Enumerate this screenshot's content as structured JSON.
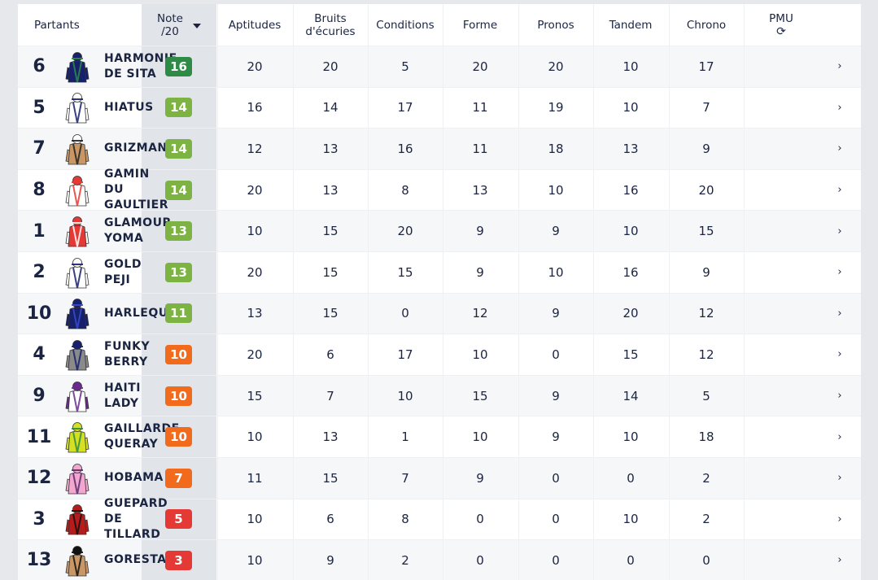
{
  "colors": {
    "high": "#2e8b45",
    "good": "#7cb342",
    "mid": "#f26b1d",
    "low": "#e53935"
  },
  "header": {
    "partants": "Partants",
    "note_line1": "Note",
    "note_line2": "/20",
    "sort_icon": "caret-down-icon",
    "cols": [
      {
        "l1": "Aptitudes",
        "l2": ""
      },
      {
        "l1": "Bruits",
        "l2": "d'écuries"
      },
      {
        "l1": "Conditions",
        "l2": ""
      },
      {
        "l1": "Forme",
        "l2": ""
      },
      {
        "l1": "Pronos",
        "l2": ""
      },
      {
        "l1": "Tandem",
        "l2": ""
      },
      {
        "l1": "Chrono",
        "l2": ""
      }
    ],
    "pmu": "PMU",
    "pmu_icon": "refresh-icon",
    "pmu_icon_glyph": "⟳"
  },
  "rows": [
    {
      "num": "6",
      "name": [
        "HARMONIE",
        "DE SITA"
      ],
      "note": "16",
      "level": "high",
      "silk": {
        "body": "#16206b",
        "arms": "#16206b",
        "cap": "#16206b",
        "accent": "#2e8b45"
      },
      "vals": [
        "20",
        "20",
        "5",
        "20",
        "20",
        "10",
        "17"
      ],
      "chev": "›"
    },
    {
      "num": "5",
      "name": [
        "HIATUS"
      ],
      "note": "14",
      "level": "good",
      "silk": {
        "body": "#ffffff",
        "arms": "#ffffff",
        "cap": "#ffffff",
        "accent": "#16206b"
      },
      "vals": [
        "16",
        "14",
        "17",
        "11",
        "19",
        "10",
        "7"
      ],
      "chev": "›"
    },
    {
      "num": "7",
      "name": [
        "GRIZMAN"
      ],
      "note": "14",
      "level": "good",
      "silk": {
        "body": "#c99766",
        "arms": "#c99766",
        "cap": "#ffffff",
        "accent": "#222222"
      },
      "vals": [
        "12",
        "13",
        "16",
        "11",
        "18",
        "13",
        "9"
      ],
      "chev": "›"
    },
    {
      "num": "8",
      "name": [
        "GAMIN",
        "DU",
        "GAULTIER"
      ],
      "note": "14",
      "level": "good",
      "silk": {
        "body": "#ffffff",
        "arms": "#ffffff",
        "cap": "#e53935",
        "accent": "#e53935"
      },
      "vals": [
        "20",
        "13",
        "8",
        "13",
        "10",
        "16",
        "20"
      ],
      "chev": "›"
    },
    {
      "num": "1",
      "name": [
        "GLAMOUR",
        "YOMA"
      ],
      "note": "13",
      "level": "good",
      "silk": {
        "body": "#e53935",
        "arms": "#ffffff",
        "cap": "#e53935",
        "accent": "#ffffff"
      },
      "vals": [
        "10",
        "15",
        "20",
        "9",
        "9",
        "10",
        "15"
      ],
      "chev": "›"
    },
    {
      "num": "2",
      "name": [
        "GOLD",
        "PEJI"
      ],
      "note": "13",
      "level": "good",
      "silk": {
        "body": "#ffffff",
        "arms": "#ffffff",
        "cap": "#ffffff",
        "accent": "#16206b"
      },
      "vals": [
        "20",
        "15",
        "15",
        "9",
        "10",
        "16",
        "9"
      ],
      "chev": "›"
    },
    {
      "num": "10",
      "name": [
        "HARLEQUIN"
      ],
      "note": "11",
      "level": "good",
      "silk": {
        "body": "#16206b",
        "arms": "#16206b",
        "cap": "#16206b",
        "accent": "#3a4bd0"
      },
      "vals": [
        "13",
        "15",
        "0",
        "12",
        "9",
        "20",
        "12"
      ],
      "chev": "›"
    },
    {
      "num": "4",
      "name": [
        "FUNKY",
        "BERRY"
      ],
      "note": "10",
      "level": "mid",
      "silk": {
        "body": "#8a8a8a",
        "arms": "#8a8a8a",
        "cap": "#16206b",
        "accent": "#16206b"
      },
      "vals": [
        "20",
        "6",
        "17",
        "10",
        "0",
        "15",
        "12"
      ],
      "chev": "›"
    },
    {
      "num": "9",
      "name": [
        "HAITI",
        "LADY"
      ],
      "note": "10",
      "level": "mid",
      "silk": {
        "body": "#ffffff",
        "arms": "#6a2a8c",
        "cap": "#6a2a8c",
        "accent": "#6a2a8c"
      },
      "vals": [
        "15",
        "7",
        "10",
        "15",
        "9",
        "14",
        "5"
      ],
      "chev": "›"
    },
    {
      "num": "11",
      "name": [
        "GAILLARDE",
        "QUERAY"
      ],
      "note": "10",
      "level": "mid",
      "silk": {
        "body": "#d4e021",
        "arms": "#d4e021",
        "cap": "#d4e021",
        "accent": "#2e8b45"
      },
      "vals": [
        "10",
        "13",
        "1",
        "10",
        "9",
        "10",
        "18"
      ],
      "chev": "›"
    },
    {
      "num": "12",
      "name": [
        "HOBAMA"
      ],
      "note": "7",
      "level": "mid",
      "silk": {
        "body": "#f2a7cf",
        "arms": "#f2a7cf",
        "cap": "#f2a7cf",
        "accent": "#5a2a6c"
      },
      "vals": [
        "11",
        "15",
        "7",
        "9",
        "0",
        "0",
        "2"
      ],
      "chev": "›"
    },
    {
      "num": "3",
      "name": [
        "GUEPARD",
        "DE",
        "TILLARD"
      ],
      "note": "5",
      "level": "low",
      "silk": {
        "body": "#b71c1c",
        "arms": "#b71c1c",
        "cap": "#b71c1c",
        "accent": "#111111"
      },
      "vals": [
        "10",
        "6",
        "8",
        "0",
        "0",
        "10",
        "2"
      ],
      "chev": "›"
    },
    {
      "num": "13",
      "name": [
        "GORESTAN"
      ],
      "note": "3",
      "level": "low",
      "silk": {
        "body": "#c99766",
        "arms": "#c99766",
        "cap": "#111111",
        "accent": "#111111"
      },
      "vals": [
        "10",
        "9",
        "2",
        "0",
        "0",
        "0",
        "0"
      ],
      "chev": "›"
    }
  ]
}
